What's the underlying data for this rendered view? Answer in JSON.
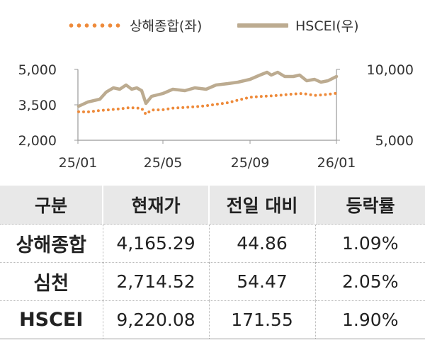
{
  "chart_data": {
    "type": "line",
    "x_ticks": [
      "25/01",
      "25/05",
      "25/09",
      "26/01"
    ],
    "y_left": {
      "ticks": [
        "2,000",
        "3,500",
        "5,000"
      ],
      "range": [
        2000,
        5000
      ]
    },
    "y_right": {
      "ticks": [
        "5,000",
        "10,000"
      ],
      "range": [
        5000,
        10000
      ]
    },
    "series": [
      {
        "name": "상해종합(좌)",
        "axis": "left",
        "style": "dotted",
        "color": "#ee8a3a",
        "x": [
          "2025-01-02",
          "2025-01-15",
          "2025-02-01",
          "2025-02-15",
          "2025-03-01",
          "2025-03-15",
          "2025-04-01",
          "2025-04-07",
          "2025-04-15",
          "2025-05-01",
          "2025-05-15",
          "2025-06-01",
          "2025-06-15",
          "2025-07-01",
          "2025-07-15",
          "2025-08-01",
          "2025-08-15",
          "2025-09-01",
          "2025-09-15",
          "2025-10-01",
          "2025-10-15",
          "2025-11-01",
          "2025-11-15",
          "2025-12-01",
          "2025-12-15",
          "2026-01-01"
        ],
        "y": [
          3210,
          3200,
          3260,
          3290,
          3330,
          3380,
          3350,
          3100,
          3280,
          3290,
          3360,
          3390,
          3420,
          3460,
          3520,
          3590,
          3700,
          3820,
          3850,
          3880,
          3910,
          3960,
          3980,
          3900,
          3930,
          3990
        ]
      },
      {
        "name": "HSCEI(우)",
        "axis": "right",
        "style": "solid",
        "color": "#bcab90",
        "x": [
          "2025-01-02",
          "2025-01-15",
          "2025-02-01",
          "2025-02-10",
          "2025-02-20",
          "2025-03-01",
          "2025-03-10",
          "2025-03-18",
          "2025-03-25",
          "2025-04-01",
          "2025-04-07",
          "2025-04-15",
          "2025-05-01",
          "2025-05-15",
          "2025-06-01",
          "2025-06-15",
          "2025-07-01",
          "2025-07-15",
          "2025-08-01",
          "2025-08-15",
          "2025-09-01",
          "2025-09-15",
          "2025-09-25",
          "2025-10-01",
          "2025-10-10",
          "2025-10-20",
          "2025-11-01",
          "2025-11-10",
          "2025-11-20",
          "2025-12-01",
          "2025-12-10",
          "2025-12-20",
          "2026-01-01"
        ],
        "y": [
          7400,
          7700,
          7900,
          8400,
          8700,
          8600,
          8900,
          8600,
          8700,
          8500,
          7600,
          8100,
          8300,
          8600,
          8500,
          8700,
          8600,
          8900,
          9000,
          9100,
          9300,
          9600,
          9800,
          9600,
          9800,
          9500,
          9500,
          9600,
          9200,
          9300,
          9100,
          9200,
          9500
        ]
      }
    ]
  },
  "table": {
    "headers": [
      "구분",
      "현재가",
      "전일 대비",
      "등락률"
    ],
    "rows": [
      [
        "상해종합",
        "4,165.29",
        "44.86",
        "1.09%"
      ],
      [
        "심천",
        "2,714.52",
        "54.47",
        "2.05%"
      ],
      [
        "HSCEI",
        "9,220.08",
        "171.55",
        "1.90%"
      ]
    ]
  }
}
